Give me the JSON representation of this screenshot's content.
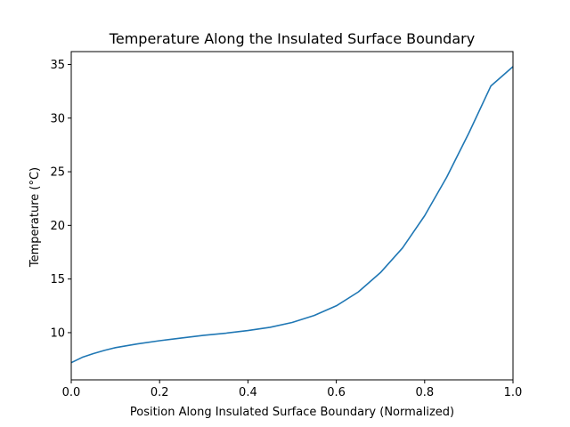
{
  "chart_data": {
    "type": "line",
    "title": "Temperature Along the Insulated Surface Boundary",
    "xlabel": "Position Along Insulated Surface Boundary (Normalized)",
    "ylabel": "Temperature (°C)",
    "xlim": [
      0,
      1
    ],
    "ylim": [
      5.6,
      36.2
    ],
    "xticks": [
      0.0,
      0.2,
      0.4,
      0.6,
      0.8,
      1.0
    ],
    "xtick_labels": [
      "0.0",
      "0.2",
      "0.4",
      "0.6",
      "0.8",
      "1.0"
    ],
    "yticks": [
      10,
      15,
      20,
      25,
      30,
      35
    ],
    "ytick_labels": [
      "10",
      "15",
      "20",
      "25",
      "30",
      "35"
    ],
    "grid": false,
    "legend": "none",
    "colors": {
      "series": "#1f77b4",
      "axes": "#000000",
      "background": "#ffffff"
    },
    "series": [
      {
        "x": [
          0.0,
          0.025,
          0.05,
          0.075,
          0.1,
          0.15,
          0.2,
          0.25,
          0.3,
          0.35,
          0.4,
          0.45,
          0.5,
          0.55,
          0.6,
          0.65,
          0.7,
          0.75,
          0.8,
          0.85,
          0.9,
          0.95,
          1.0
        ],
        "y": [
          7.2,
          7.7,
          8.05,
          8.35,
          8.6,
          8.95,
          9.25,
          9.5,
          9.75,
          9.95,
          10.2,
          10.5,
          10.95,
          11.6,
          12.5,
          13.8,
          15.6,
          17.9,
          20.9,
          24.5,
          28.6,
          33.0,
          34.8
        ]
      }
    ]
  }
}
